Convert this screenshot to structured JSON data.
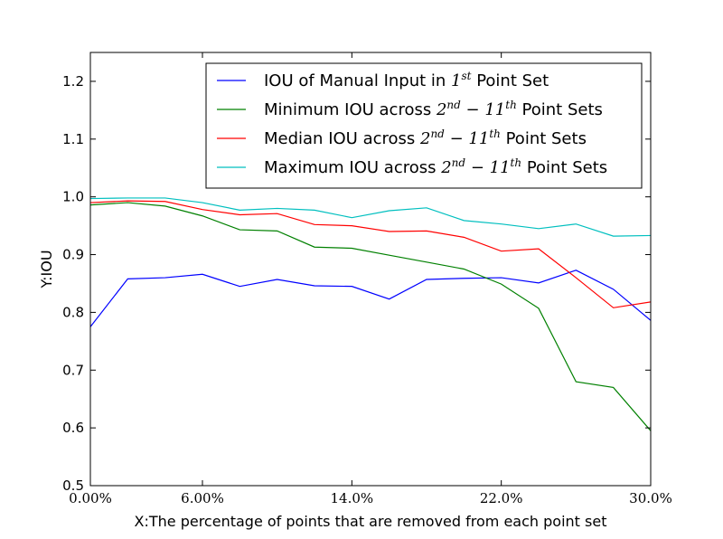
{
  "chart_data": {
    "type": "line",
    "title": "",
    "xlabel": "X:The percentage of points that are removed from each point set",
    "ylabel": "Y:IOU",
    "xlim": [
      0,
      30
    ],
    "ylim": [
      0.5,
      1.25
    ],
    "x_ticks": [
      {
        "value": 0,
        "label": "0.00%"
      },
      {
        "value": 6,
        "label": "6.00%"
      },
      {
        "value": 14,
        "label": "14.0%"
      },
      {
        "value": 22,
        "label": "22.0%"
      },
      {
        "value": 30,
        "label": "30.0%"
      }
    ],
    "y_ticks": [
      {
        "value": 0.5,
        "label": "0.5"
      },
      {
        "value": 0.6,
        "label": "0.6"
      },
      {
        "value": 0.7,
        "label": "0.7"
      },
      {
        "value": 0.8,
        "label": "0.8"
      },
      {
        "value": 0.9,
        "label": "0.9"
      },
      {
        "value": 1.0,
        "label": "1.0"
      },
      {
        "value": 1.1,
        "label": "1.1"
      },
      {
        "value": 1.2,
        "label": "1.2"
      }
    ],
    "legend_position": "top-right",
    "x": [
      0,
      2,
      4,
      6,
      8,
      10,
      12,
      14,
      16,
      18,
      20,
      22,
      24,
      26,
      28,
      30
    ],
    "series": [
      {
        "name_parts": [
          {
            "text": "IOU of Manual Input in ",
            "style": "normal"
          },
          {
            "text": "1",
            "style": "math"
          },
          {
            "text": "st",
            "style": "math-sup"
          },
          {
            "text": " Point Set",
            "style": "normal"
          }
        ],
        "color": "#0000ff",
        "values": [
          0.775,
          0.858,
          0.86,
          0.866,
          0.845,
          0.857,
          0.846,
          0.845,
          0.823,
          0.857,
          0.859,
          0.86,
          0.851,
          0.873,
          0.84,
          0.786
        ]
      },
      {
        "name_parts": [
          {
            "text": "Minimum IOU across ",
            "style": "normal"
          },
          {
            "text": "2",
            "style": "math"
          },
          {
            "text": "nd",
            "style": "math-sup"
          },
          {
            "text": " − 11",
            "style": "math"
          },
          {
            "text": "th",
            "style": "math-sup"
          },
          {
            "text": " Point Sets",
            "style": "normal"
          }
        ],
        "color": "#008000",
        "values": [
          0.986,
          0.99,
          0.984,
          0.967,
          0.943,
          0.941,
          0.913,
          0.911,
          0.899,
          0.887,
          0.875,
          0.849,
          0.807,
          0.68,
          0.67,
          0.595
        ]
      },
      {
        "name_parts": [
          {
            "text": "Median IOU across ",
            "style": "normal"
          },
          {
            "text": "2",
            "style": "math"
          },
          {
            "text": "nd",
            "style": "math-sup"
          },
          {
            "text": " − 11",
            "style": "math"
          },
          {
            "text": "th",
            "style": "math-sup"
          },
          {
            "text": " Point Sets",
            "style": "normal"
          }
        ],
        "color": "#ff0000",
        "values": [
          0.99,
          0.993,
          0.992,
          0.978,
          0.969,
          0.971,
          0.952,
          0.95,
          0.94,
          0.941,
          0.93,
          0.906,
          0.91,
          0.86,
          0.808,
          0.818
        ]
      },
      {
        "name_parts": [
          {
            "text": "Maximum IOU across ",
            "style": "normal"
          },
          {
            "text": "2",
            "style": "math"
          },
          {
            "text": "nd",
            "style": "math-sup"
          },
          {
            "text": " − 11",
            "style": "math"
          },
          {
            "text": "th",
            "style": "math-sup"
          },
          {
            "text": " Point Sets",
            "style": "normal"
          }
        ],
        "color": "#00bfbf",
        "values": [
          0.997,
          0.998,
          0.998,
          0.99,
          0.977,
          0.98,
          0.977,
          0.964,
          0.976,
          0.981,
          0.959,
          0.953,
          0.945,
          0.953,
          0.932,
          0.933
        ]
      }
    ]
  }
}
